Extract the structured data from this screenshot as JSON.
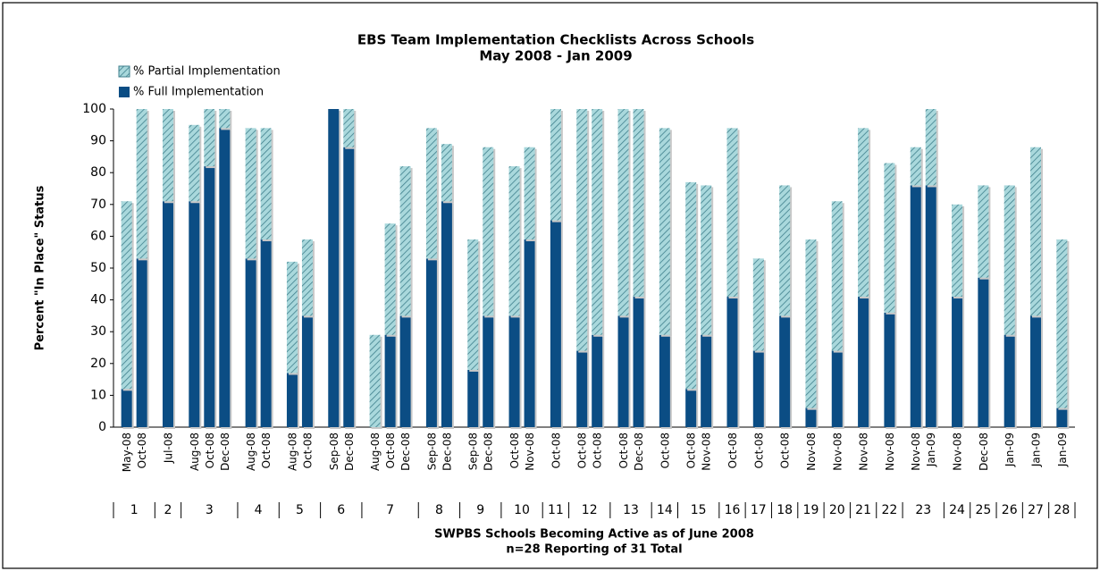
{
  "chart_data": {
    "type": "stacked_bar",
    "title": "EBS Team Implementation Checklists Across Schools",
    "subtitle": "May 2008 - Jan 2009",
    "y_label": "Percent \"In Place\" Status",
    "x_label": "SWPBS Schools Becoming Active as of June 2008",
    "x_sublabel": "n=28 Reporting of 31 Total",
    "categories": [
      "May-08",
      "Oct-08",
      "Jul-08",
      "Aug-08",
      "Oct-08",
      "Dec-08",
      "Aug-08",
      "Oct-08",
      "Aug-08",
      "Oct-08",
      "Sep-08",
      "Dec-08",
      "Aug-08",
      "Oct-08",
      "Dec-08",
      "Sep-08",
      "Dec-08",
      "Sep-08",
      "Dec-08",
      "Oct-08",
      "Nov-08",
      "Oct-08",
      "Oct-08",
      "Oct-08",
      "Oct-08",
      "Dec-08",
      "Oct-08",
      "Oct-08",
      "Nov-08",
      "Oct-08",
      "Oct-08",
      "Oct-08",
      "Nov-08",
      "Nov-08",
      "Nov-08",
      "Nov-08",
      "Nov-08",
      "Jan-09",
      "Nov-08",
      "Dec-08",
      "Jan-09",
      "Jan-09",
      "Jan-09"
    ],
    "groups": [
      "1",
      "2",
      "3",
      "4",
      "5",
      "6",
      "7",
      "8",
      "9",
      "10",
      "11",
      "12",
      "13",
      "14",
      "15",
      "16",
      "17",
      "18",
      "19",
      "20",
      "21",
      "22",
      "23",
      "24",
      "25",
      "26",
      "27",
      "28"
    ],
    "group_sizes": [
      2,
      1,
      3,
      2,
      2,
      2,
      3,
      2,
      2,
      2,
      1,
      2,
      2,
      1,
      2,
      1,
      1,
      1,
      1,
      1,
      1,
      1,
      2,
      1,
      1,
      1,
      1,
      1
    ],
    "series": [
      {
        "name": "% Full Implementation",
        "color": "#0b4d84",
        "values": [
          12,
          53,
          71,
          71,
          82,
          94,
          53,
          59,
          17,
          35,
          100,
          88,
          0,
          29,
          35,
          53,
          71,
          18,
          35,
          35,
          59,
          65,
          24,
          29,
          35,
          41,
          29,
          12,
          29,
          41,
          24,
          35,
          6,
          24,
          41,
          36,
          76,
          76,
          41,
          47,
          29,
          35,
          6
        ]
      },
      {
        "name": "% Partial Implementation",
        "color": "#a9d8dc",
        "pattern": "hatch",
        "values": [
          59,
          47,
          29,
          24,
          18,
          6,
          41,
          35,
          35,
          24,
          0,
          12,
          29,
          35,
          47,
          41,
          18,
          41,
          53,
          47,
          29,
          35,
          76,
          71,
          65,
          59,
          65,
          65,
          47,
          53,
          29,
          41,
          53,
          47,
          53,
          47,
          12,
          24,
          29,
          29,
          47,
          53,
          53
        ]
      }
    ],
    "ylim": [
      0,
      100
    ],
    "yticks": [
      0,
      10,
      20,
      30,
      40,
      50,
      60,
      70,
      80,
      90,
      100
    ],
    "grid": false
  }
}
